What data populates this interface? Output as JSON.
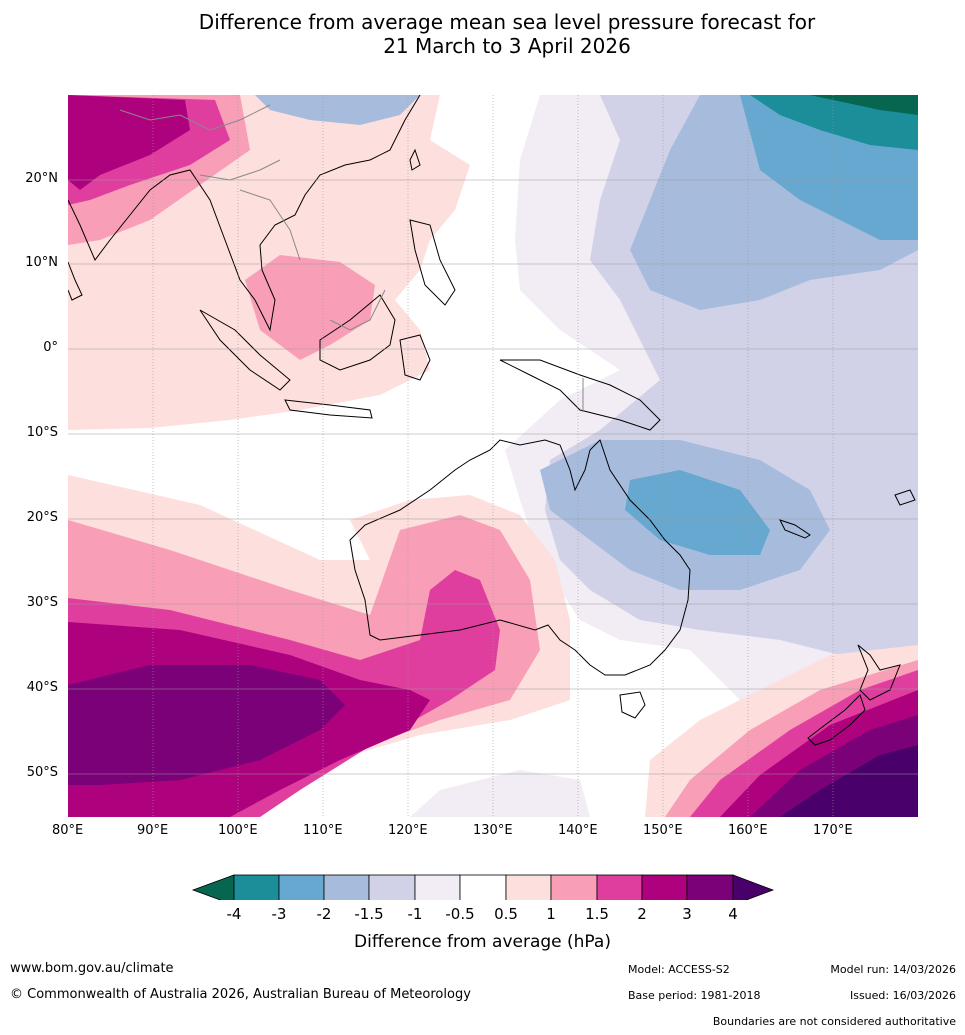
{
  "title": {
    "line1": "Difference from average mean sea level pressure forecast for",
    "line2": "21 March to 3 April 2026"
  },
  "latitude_labels": [
    "20°N",
    "10°N",
    "0°",
    "10°S",
    "20°S",
    "30°S",
    "40°S",
    "50°S"
  ],
  "longitude_labels": [
    "80°E",
    "90°E",
    "100°E",
    "110°E",
    "120°E",
    "130°E",
    "140°E",
    "150°E",
    "160°E",
    "170°E"
  ],
  "colorbar": {
    "title": "Difference from average (hPa)",
    "ticks": [
      "-4",
      "-3",
      "-2",
      "-1.5",
      "-1",
      "-0.5",
      "0.5",
      "1",
      "1.5",
      "2",
      "3",
      "4"
    ],
    "colors": {
      "below_-4": "#06664f",
      "-4_to_-3": "#1b8e9a",
      "-3_to_-2": "#67a8d0",
      "-2_to_-1.5": "#a7bcdc",
      "-1.5_to_-1": "#d1d2e7",
      "-1_to_-0.5": "#f2ecf4",
      "-0.5_to_0.5": "#ffffff",
      "0.5_to_1": "#fddfde",
      "1_to_1.5": "#f89fb7",
      "1.5_to_2": "#df3e9e",
      "2_to_3": "#ae017e",
      "3_to_4": "#7a0177",
      "above_4": "#49006a"
    }
  },
  "footer": {
    "website": "www.bom.gov.au/climate",
    "copyright": "© Commonwealth of Australia 2026, Australian Bureau of Meteorology",
    "model": "Model: ACCESS-S2",
    "base_period": "Base period: 1981-2018",
    "model_run": "Model run: 14/03/2026",
    "issued": "Issued: 16/03/2026",
    "disclaimer": "Boundaries are not considered authoritative"
  }
}
